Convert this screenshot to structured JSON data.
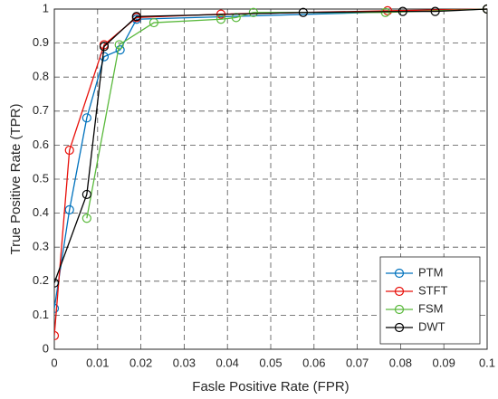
{
  "chart_data": {
    "type": "line",
    "xlabel": "Fasle Positive Rate (FPR)",
    "ylabel": "True Positive Rate (TPR)",
    "xlim": [
      0,
      0.1
    ],
    "xticks": [
      0,
      0.01,
      0.02,
      0.03,
      0.04,
      0.05,
      0.06,
      0.07,
      0.08,
      0.09,
      0.1
    ],
    "ylim": [
      0,
      1
    ],
    "yticks": [
      0,
      0.1,
      0.2,
      0.3,
      0.4,
      0.5,
      0.6,
      0.7,
      0.8,
      0.9,
      1
    ],
    "grid": true,
    "legend": "lower right",
    "series": [
      {
        "name": "PTM",
        "color": "#0072bd",
        "x": [
          0,
          0.0035,
          0.0075,
          0.0115,
          0.0152,
          0.019,
          0.1
        ],
        "values": [
          0.12,
          0.41,
          0.68,
          0.86,
          0.88,
          0.97,
          1
        ]
      },
      {
        "name": "STFT",
        "color": "#e8100a",
        "x": [
          0,
          0.0035,
          0.0115,
          0.019,
          0.0385,
          0.077,
          0.1
        ],
        "values": [
          0.04,
          0.585,
          0.895,
          0.975,
          0.985,
          0.995,
          1
        ]
      },
      {
        "name": "FSM",
        "color": "#5ab93c",
        "x": [
          0.0075,
          0.015,
          0.023,
          0.0385,
          0.042,
          0.046,
          0.0765,
          0.1
        ],
        "values": [
          0.385,
          0.895,
          0.96,
          0.97,
          0.975,
          0.99,
          0.99,
          1
        ]
      },
      {
        "name": "DWT",
        "color": "#000000",
        "x": [
          0,
          0.0075,
          0.0115,
          0.019,
          0.0575,
          0.0805,
          0.088,
          0.1
        ],
        "values": [
          0.195,
          0.455,
          0.89,
          0.978,
          0.99,
          0.993,
          0.993,
          1
        ]
      }
    ]
  }
}
